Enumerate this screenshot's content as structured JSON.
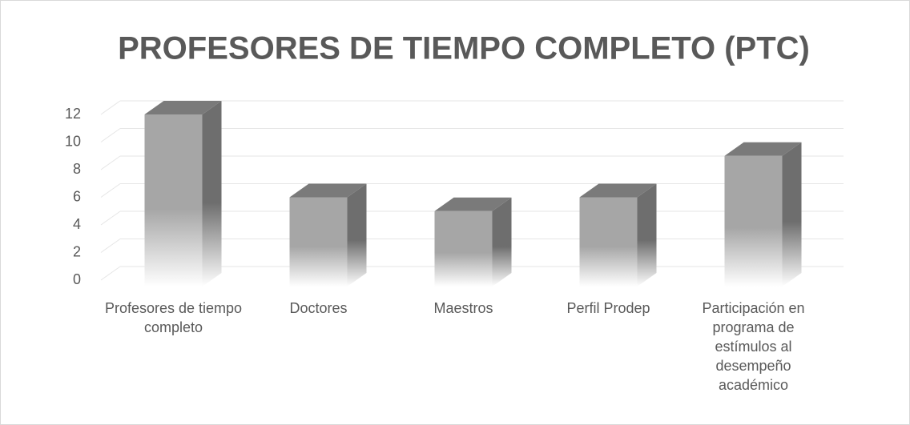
{
  "chart_data": {
    "type": "bar3d",
    "title": "PROFESORES DE TIEMPO COMPLETO (PTC)",
    "categories": [
      "Profesores de tiempo completo",
      "Doctores",
      "Maestros",
      "Perfil Prodep",
      "Participación en programa de estímulos al desempeño académico"
    ],
    "values": [
      12,
      6,
      5,
      6,
      9
    ],
    "color": "#a6a6a6",
    "ylim": [
      0,
      12
    ],
    "yticks": [
      0,
      2,
      4,
      6,
      8,
      10,
      12
    ],
    "grid": true
  }
}
